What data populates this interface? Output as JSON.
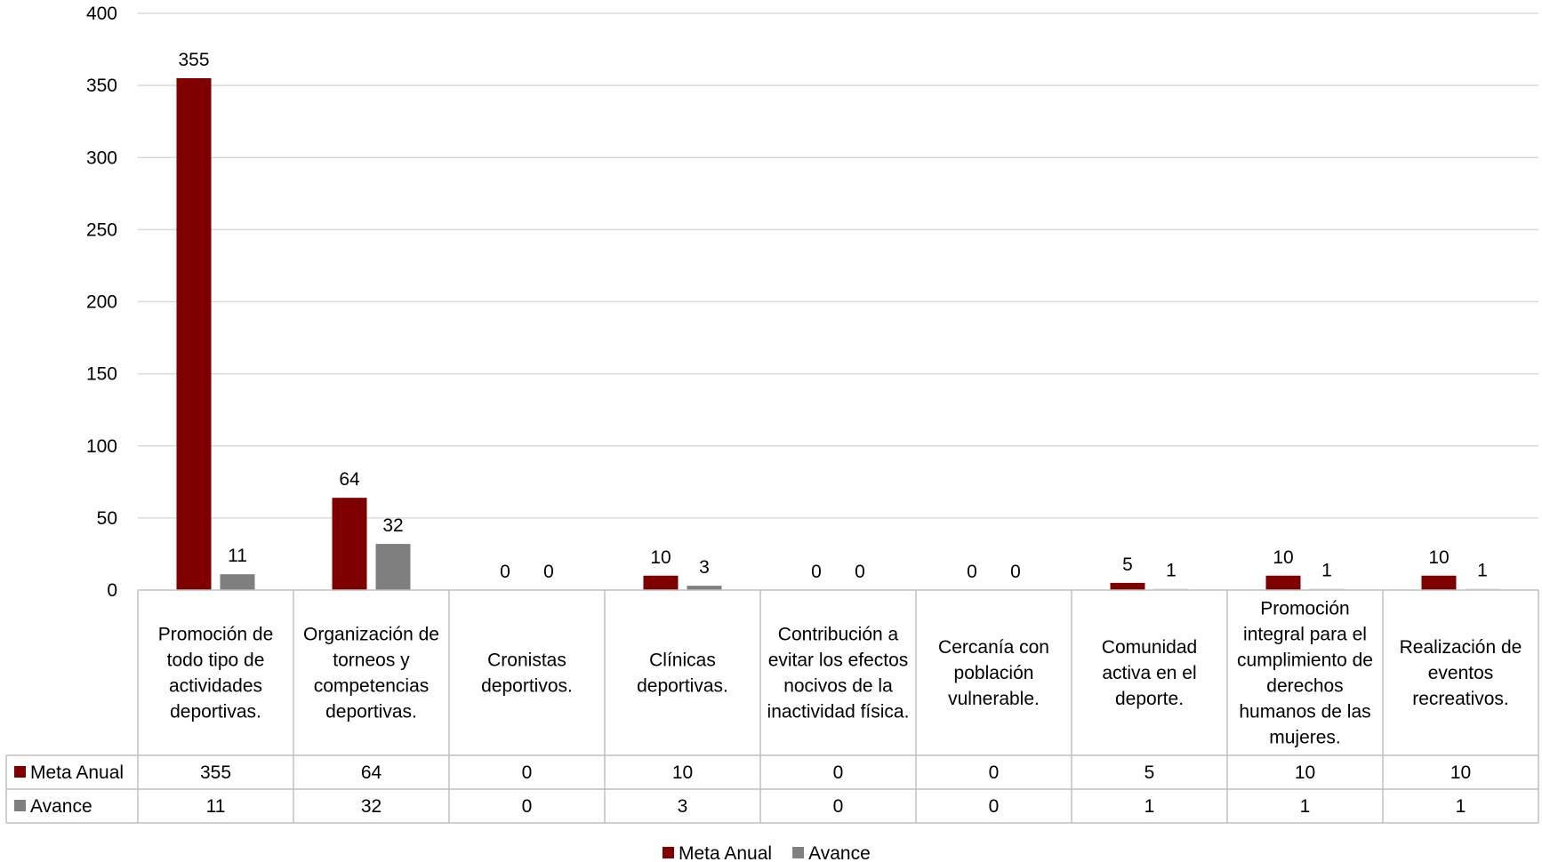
{
  "chart_data": {
    "type": "bar",
    "title": "",
    "xlabel": "",
    "ylabel": "",
    "ylim": [
      0,
      400
    ],
    "yticks": [
      0,
      50,
      100,
      150,
      200,
      250,
      300,
      350,
      400
    ],
    "grid": true,
    "legend_position": "bottom",
    "categories": [
      [
        "Promoción de",
        "todo tipo de",
        "actividades",
        "deportivas."
      ],
      [
        "Organización de",
        "torneos y",
        "competencias",
        "deportivas."
      ],
      [
        "Cronistas",
        "deportivos."
      ],
      [
        "Clínicas",
        "deportivas."
      ],
      [
        "Contribución a",
        "evitar los efectos",
        "nocivos de la",
        "inactividad física."
      ],
      [
        "Cercanía con",
        "población",
        "vulnerable."
      ],
      [
        "Comunidad",
        "activa en el",
        "deporte."
      ],
      [
        "Promoción",
        "integral para el",
        "cumplimiento de",
        "derechos",
        "humanos de las",
        "mujeres."
      ],
      [
        "Realización de",
        "eventos",
        "recreativos."
      ]
    ],
    "series": [
      {
        "name": "Meta Anual",
        "color": "#7f0000",
        "values": [
          355,
          64,
          0,
          10,
          0,
          0,
          5,
          10,
          10
        ]
      },
      {
        "name": "Avance",
        "color": "#7f7f7f",
        "values": [
          11,
          32,
          0,
          3,
          0,
          0,
          1,
          1,
          1
        ]
      }
    ]
  }
}
